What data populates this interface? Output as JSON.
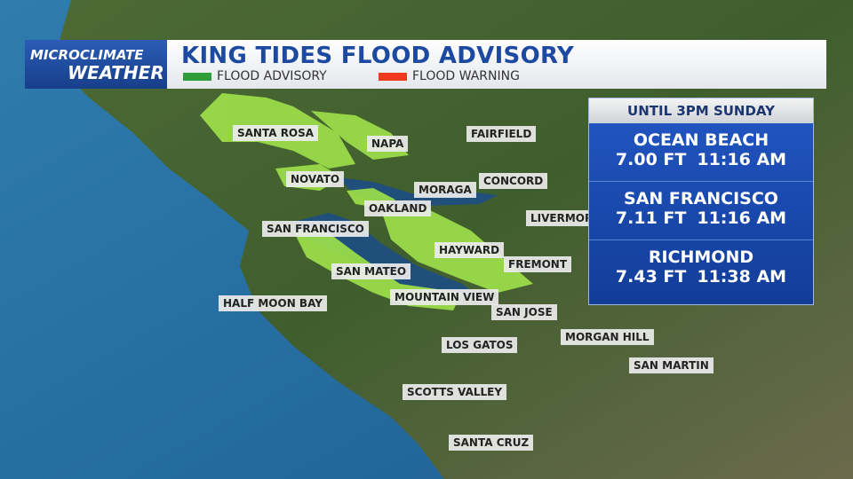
{
  "badge": {
    "line1": "MICROCLIMATE",
    "line2": "WEATHER"
  },
  "header": {
    "title": "KING TIDES FLOOD ADVISORY"
  },
  "legend": [
    {
      "label": "FLOOD ADVISORY",
      "color": "#2e9e3a"
    },
    {
      "label": "FLOOD WARNING",
      "color": "#f03a1e"
    }
  ],
  "panel": {
    "title": "UNTIL 3PM SUNDAY",
    "rows": [
      {
        "name": "OCEAN BEACH",
        "height": "7.00 FT",
        "time": "11:16 AM"
      },
      {
        "name": "SAN FRANCISCO",
        "height": "7.11 FT",
        "time": "11:16 AM"
      },
      {
        "name": "RICHMOND",
        "height": "7.43 FT",
        "time": "11:38 AM"
      }
    ]
  },
  "cities": [
    "SANTA ROSA",
    "NAPA",
    "FAIRFIELD",
    "NOVATO",
    "MORAGA",
    "CONCORD",
    "OAKLAND",
    "LIVERMORE",
    "SAN FRANCISCO",
    "HAYWARD",
    "FREMONT",
    "SAN MATEO",
    "HALF MOON BAY",
    "MOUNTAIN VIEW",
    "SAN JOSE",
    "LOS GATOS",
    "MORGAN HILL",
    "SAN MARTIN",
    "SCOTTS VALLEY",
    "SANTA CRUZ"
  ]
}
